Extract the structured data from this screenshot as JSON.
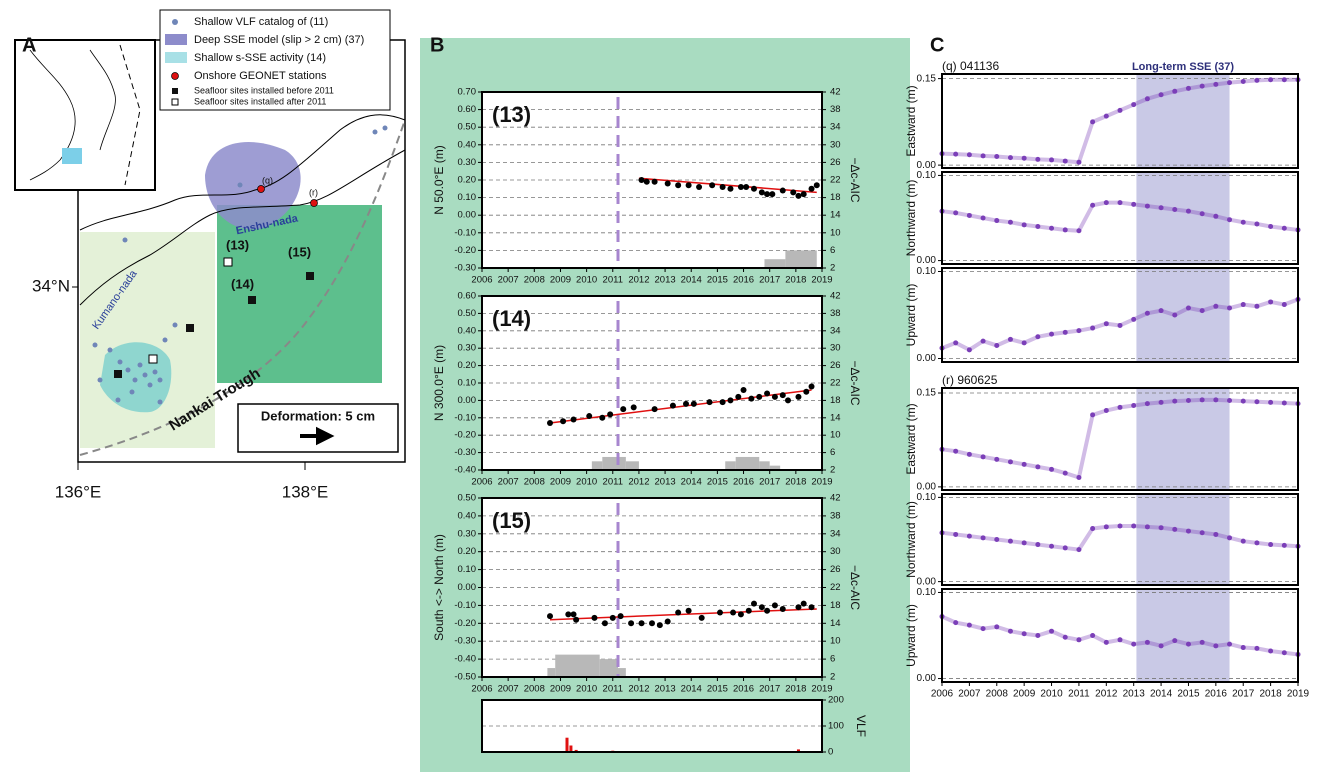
{
  "panel_labels": [
    "A",
    "B",
    "C"
  ],
  "map": {
    "legend": [
      "Shallow VLF catalog of (11)",
      "Deep SSE model (slip > 2 cm) (37)",
      "Shallow s-SSE activity (14)",
      "Onshore GEONET stations",
      "Seafloor sites installed before 2011",
      "Seafloor sites installed after 2011"
    ],
    "places": [
      "Kumano-nada",
      "Enshu-nada",
      "Nankai Trough"
    ],
    "sites": [
      "(13)",
      "(14)",
      "(15)"
    ],
    "stations": [
      "(q)",
      "(r)"
    ],
    "scale_label": "Deformation: 5 cm",
    "lat_label": "34°N",
    "lon_labels": [
      "136°E",
      "138°E"
    ]
  },
  "chart_data": [
    {
      "type": "scatter",
      "label": "(13)",
      "ylabel": "N 50.0°E (m)",
      "y2label": "−Δc-AIC",
      "color": "#000000",
      "xlim": [
        2006,
        2019
      ],
      "xticks": [
        2006,
        2007,
        2008,
        2009,
        2010,
        2011,
        2012,
        2013,
        2014,
        2015,
        2016,
        2017,
        2018,
        2019
      ],
      "ylim": [
        -0.3,
        0.7
      ],
      "yticks": [
        {
          "value": -0.3,
          "label": "-0.30"
        },
        {
          "value": -0.2,
          "label": "-0.20"
        },
        {
          "value": -0.1,
          "label": "-0.10"
        },
        {
          "value": 0,
          "label": "0.00"
        },
        {
          "value": 0.1,
          "label": "0.10"
        },
        {
          "value": 0.2,
          "label": "0.20"
        },
        {
          "value": 0.3,
          "label": "0.30"
        },
        {
          "value": 0.4,
          "label": "0.40"
        },
        {
          "value": 0.5,
          "label": "0.50"
        },
        {
          "value": 0.6,
          "label": "0.60"
        },
        {
          "value": 0.7,
          "label": "0.70"
        }
      ],
      "y2lim": [
        2,
        42
      ],
      "y2ticks": [
        2,
        6,
        10,
        14,
        18,
        22,
        26,
        30,
        34,
        38,
        42
      ],
      "x": [
        2012.1,
        2012.3,
        2012.6,
        2013.1,
        2013.5,
        2013.9,
        2014.3,
        2014.8,
        2015.2,
        2015.5,
        2015.9,
        2016.1,
        2016.4,
        2016.7,
        2016.9,
        2017.1,
        2017.5,
        2017.9,
        2018.1,
        2018.3,
        2018.6,
        2018.8
      ],
      "values": [
        0.2,
        0.19,
        0.19,
        0.18,
        0.17,
        0.17,
        0.16,
        0.17,
        0.16,
        0.15,
        0.16,
        0.16,
        0.15,
        0.13,
        0.12,
        0.12,
        0.14,
        0.13,
        0.11,
        0.12,
        0.15,
        0.17
      ],
      "trend": {
        "x": [
          2012,
          2018.8
        ],
        "values": [
          0.21,
          0.13
        ]
      },
      "event_x": 2011.2,
      "aic": {
        "bins": [
          2016.8,
          2017.6,
          2018.8
        ],
        "values": [
          4,
          6
        ]
      }
    },
    {
      "type": "scatter",
      "label": "(14)",
      "ylabel": "N 300.0°E (m)",
      "y2label": "−Δc-AIC",
      "color": "#000000",
      "xlim": [
        2006,
        2019
      ],
      "xticks": [
        2006,
        2007,
        2008,
        2009,
        2010,
        2011,
        2012,
        2013,
        2014,
        2015,
        2016,
        2017,
        2018,
        2019
      ],
      "ylim": [
        -0.4,
        0.6
      ],
      "yticks": [
        {
          "value": -0.4,
          "label": "-0.40"
        },
        {
          "value": -0.3,
          "label": "-0.30"
        },
        {
          "value": -0.2,
          "label": "-0.20"
        },
        {
          "value": -0.1,
          "label": "-0.10"
        },
        {
          "value": 0,
          "label": "0.00"
        },
        {
          "value": 0.1,
          "label": "0.10"
        },
        {
          "value": 0.2,
          "label": "0.20"
        },
        {
          "value": 0.3,
          "label": "0.30"
        },
        {
          "value": 0.4,
          "label": "0.40"
        },
        {
          "value": 0.5,
          "label": "0.50"
        },
        {
          "value": 0.6,
          "label": "0.60"
        }
      ],
      "y2lim": [
        2,
        42
      ],
      "y2ticks": [
        2,
        6,
        10,
        14,
        18,
        22,
        26,
        30,
        34,
        38,
        42
      ],
      "x": [
        2008.6,
        2009.1,
        2009.5,
        2010.1,
        2010.6,
        2010.9,
        2011.4,
        2011.8,
        2012.6,
        2013.3,
        2013.8,
        2014.1,
        2014.7,
        2015.2,
        2015.5,
        2015.8,
        2016.0,
        2016.3,
        2016.6,
        2016.9,
        2017.2,
        2017.5,
        2017.7,
        2018.1,
        2018.4,
        2018.6
      ],
      "values": [
        -0.13,
        -0.12,
        -0.11,
        -0.09,
        -0.1,
        -0.08,
        -0.05,
        -0.04,
        -0.05,
        -0.03,
        -0.02,
        -0.02,
        -0.01,
        -0.01,
        0,
        0.02,
        0.06,
        0.01,
        0.02,
        0.04,
        0.02,
        0.03,
        0,
        0.02,
        0.05,
        0.08
      ],
      "trend": {
        "x": [
          2008.6,
          2018.6
        ],
        "values": [
          -0.13,
          0.06
        ]
      },
      "event_x": 2011.2,
      "aic": {
        "bins": [
          2010.2,
          2010.6,
          2011.5,
          2012.0,
          2015.3,
          2015.7,
          2016.6,
          2017.0,
          2017.4
        ],
        "values": [
          4,
          5,
          4,
          2,
          4,
          5,
          4,
          3
        ]
      }
    },
    {
      "type": "scatter",
      "label": "(15)",
      "ylabel": "South <-> North (m)",
      "y2label": "−Δc-AIC",
      "color": "#000000",
      "xlim": [
        2006,
        2019
      ],
      "xticks": [
        2006,
        2007,
        2008,
        2009,
        2010,
        2011,
        2012,
        2013,
        2014,
        2015,
        2016,
        2017,
        2018,
        2019
      ],
      "ylim": [
        -0.5,
        0.5
      ],
      "yticks": [
        {
          "value": -0.5,
          "label": "-0.50"
        },
        {
          "value": -0.4,
          "label": "-0.40"
        },
        {
          "value": -0.3,
          "label": "-0.30"
        },
        {
          "value": -0.2,
          "label": "-0.20"
        },
        {
          "value": -0.1,
          "label": "-0.10"
        },
        {
          "value": 0,
          "label": "0.00"
        },
        {
          "value": 0.1,
          "label": "0.10"
        },
        {
          "value": 0.2,
          "label": "0.20"
        },
        {
          "value": 0.3,
          "label": "0.30"
        },
        {
          "value": 0.4,
          "label": "0.40"
        },
        {
          "value": 0.5,
          "label": "0.50"
        }
      ],
      "y2lim": [
        2,
        42
      ],
      "y2ticks": [
        2,
        6,
        10,
        14,
        18,
        22,
        26,
        30,
        34,
        38,
        42
      ],
      "x": [
        2008.6,
        2009.3,
        2009.5,
        2009.6,
        2010.3,
        2010.7,
        2011.0,
        2011.3,
        2011.7,
        2012.1,
        2012.5,
        2012.8,
        2013.1,
        2013.5,
        2013.9,
        2014.4,
        2015.1,
        2015.6,
        2015.9,
        2016.2,
        2016.4,
        2016.7,
        2016.9,
        2017.2,
        2017.5,
        2018.1,
        2018.3,
        2018.6
      ],
      "values": [
        -0.16,
        -0.15,
        -0.15,
        -0.18,
        -0.17,
        -0.2,
        -0.17,
        -0.16,
        -0.2,
        -0.2,
        -0.2,
        -0.21,
        -0.19,
        -0.14,
        -0.13,
        -0.17,
        -0.14,
        -0.14,
        -0.15,
        -0.13,
        -0.09,
        -0.11,
        -0.13,
        -0.1,
        -0.12,
        -0.11,
        -0.09,
        -0.11
      ],
      "trend": {
        "x": [
          2008.6,
          2018.8
        ],
        "values": [
          -0.18,
          -0.12
        ]
      },
      "event_x": 2011.2,
      "aic": {
        "bins": [
          2008.5,
          2008.8,
          2010.5,
          2011.2,
          2011.5
        ],
        "values": [
          4,
          7,
          6,
          4
        ]
      }
    },
    {
      "type": "bar",
      "ylabel": "VLF",
      "yaxis_side": "right",
      "color": "#e01010",
      "xlim": [
        2006,
        2019
      ],
      "ylim": [
        0,
        200
      ],
      "yticks": [
        0,
        100,
        200
      ],
      "x": [
        2009.25,
        2009.4,
        2009.6,
        2011.0,
        2015.5,
        2018.1
      ],
      "values": [
        55,
        25,
        8,
        5,
        3,
        10
      ]
    },
    {
      "type": "scatter",
      "title": "(q) 041136",
      "ylabel": "Eastward (m)",
      "color": "#7b3fb8",
      "shade": [
        2013.1,
        2016.5
      ],
      "shade_label": "Long-term SSE (37)",
      "xlim": [
        2006,
        2019
      ],
      "ylim": [
        -0.005,
        0.158
      ],
      "yticks": [
        {
          "value": 0,
          "label": "0.00"
        },
        0.15
      ],
      "x": [
        2006,
        2006.5,
        2007,
        2007.5,
        2008,
        2008.5,
        2009,
        2009.5,
        2010,
        2010.5,
        2011,
        2011.5,
        2012,
        2012.5,
        2013,
        2013.5,
        2014,
        2014.5,
        2015,
        2015.5,
        2016,
        2016.5,
        2017,
        2017.5,
        2018,
        2018.5,
        2019
      ],
      "values": [
        0.02,
        0.019,
        0.018,
        0.016,
        0.015,
        0.013,
        0.012,
        0.01,
        0.009,
        0.007,
        0.005,
        0.075,
        0.085,
        0.095,
        0.105,
        0.115,
        0.122,
        0.128,
        0.133,
        0.137,
        0.14,
        0.143,
        0.145,
        0.147,
        0.148,
        0.148,
        0.148
      ]
    },
    {
      "type": "scatter",
      "ylabel": "Northward (m)",
      "color": "#7b3fb8",
      "shade": [
        2013.1,
        2016.5
      ],
      "xlim": [
        2006,
        2019
      ],
      "ylim": [
        -0.004,
        0.104
      ],
      "yticks": [
        {
          "value": 0,
          "label": "0.00"
        },
        {
          "value": 0.1,
          "label": "0.10"
        }
      ],
      "x": [
        2006,
        2006.5,
        2007,
        2007.5,
        2008,
        2008.5,
        2009,
        2009.5,
        2010,
        2010.5,
        2011,
        2011.5,
        2012,
        2012.5,
        2013,
        2013.5,
        2014,
        2014.5,
        2015,
        2015.5,
        2016,
        2016.5,
        2017,
        2017.5,
        2018,
        2018.5,
        2019
      ],
      "values": [
        0.058,
        0.056,
        0.053,
        0.05,
        0.047,
        0.045,
        0.042,
        0.04,
        0.038,
        0.036,
        0.035,
        0.065,
        0.068,
        0.068,
        0.066,
        0.064,
        0.062,
        0.06,
        0.058,
        0.055,
        0.052,
        0.048,
        0.045,
        0.043,
        0.04,
        0.038,
        0.036
      ]
    },
    {
      "type": "scatter",
      "ylabel": "Upward (m)",
      "color": "#7b3fb8",
      "shade": [
        2013.1,
        2016.5
      ],
      "xlim": [
        2006,
        2019
      ],
      "ylim": [
        -0.004,
        0.104
      ],
      "yticks": [
        {
          "value": 0,
          "label": "0.00"
        },
        {
          "value": 0.1,
          "label": "0.10"
        }
      ],
      "x": [
        2006,
        2006.5,
        2007,
        2007.5,
        2008,
        2008.5,
        2009,
        2009.5,
        2010,
        2010.5,
        2011,
        2011.5,
        2012,
        2012.5,
        2013,
        2013.5,
        2014,
        2014.5,
        2015,
        2015.5,
        2016,
        2016.5,
        2017,
        2017.5,
        2018,
        2018.5,
        2019
      ],
      "values": [
        0.012,
        0.018,
        0.01,
        0.02,
        0.015,
        0.022,
        0.018,
        0.025,
        0.028,
        0.03,
        0.032,
        0.035,
        0.04,
        0.038,
        0.045,
        0.052,
        0.055,
        0.05,
        0.058,
        0.055,
        0.06,
        0.058,
        0.062,
        0.06,
        0.065,
        0.062,
        0.068
      ]
    },
    {
      "type": "scatter",
      "title": "(r) 960625",
      "ylabel": "Eastward (m)",
      "color": "#7b3fb8",
      "shade": [
        2013.1,
        2016.5
      ],
      "xlim": [
        2006,
        2019
      ],
      "ylim": [
        -0.005,
        0.158
      ],
      "yticks": [
        {
          "value": 0,
          "label": "0.00"
        },
        0.15
      ],
      "x": [
        2006,
        2006.5,
        2007,
        2007.5,
        2008,
        2008.5,
        2009,
        2009.5,
        2010,
        2010.5,
        2011,
        2011.5,
        2012,
        2012.5,
        2013,
        2013.5,
        2014,
        2014.5,
        2015,
        2015.5,
        2016,
        2016.5,
        2017,
        2017.5,
        2018,
        2018.5,
        2019
      ],
      "values": [
        0.06,
        0.057,
        0.052,
        0.048,
        0.044,
        0.04,
        0.036,
        0.032,
        0.028,
        0.022,
        0.015,
        0.115,
        0.122,
        0.127,
        0.13,
        0.133,
        0.135,
        0.137,
        0.138,
        0.139,
        0.139,
        0.138,
        0.137,
        0.136,
        0.135,
        0.134,
        0.133
      ]
    },
    {
      "type": "scatter",
      "ylabel": "Northward (m)",
      "color": "#7b3fb8",
      "shade": [
        2013.1,
        2016.5
      ],
      "xlim": [
        2006,
        2019
      ],
      "ylim": [
        -0.004,
        0.104
      ],
      "yticks": [
        {
          "value": 0,
          "label": "0.00"
        },
        {
          "value": 0.1,
          "label": "0.10"
        }
      ],
      "x": [
        2006,
        2006.5,
        2007,
        2007.5,
        2008,
        2008.5,
        2009,
        2009.5,
        2010,
        2010.5,
        2011,
        2011.5,
        2012,
        2012.5,
        2013,
        2013.5,
        2014,
        2014.5,
        2015,
        2015.5,
        2016,
        2016.5,
        2017,
        2017.5,
        2018,
        2018.5,
        2019
      ],
      "values": [
        0.058,
        0.056,
        0.054,
        0.052,
        0.05,
        0.048,
        0.046,
        0.044,
        0.042,
        0.04,
        0.038,
        0.063,
        0.065,
        0.066,
        0.066,
        0.065,
        0.064,
        0.062,
        0.06,
        0.058,
        0.056,
        0.052,
        0.048,
        0.046,
        0.044,
        0.043,
        0.042
      ]
    },
    {
      "type": "scatter",
      "ylabel": "Upward (m)",
      "color": "#7b3fb8",
      "shade": [
        2013.1,
        2016.5
      ],
      "xlim": [
        2006,
        2019
      ],
      "xticks": [
        2006,
        2007,
        2008,
        2009,
        2010,
        2011,
        2012,
        2013,
        2014,
        2015,
        2016,
        2017,
        2018,
        2019
      ],
      "ylim": [
        -0.004,
        0.104
      ],
      "yticks": [
        {
          "value": 0,
          "label": "0.00"
        },
        {
          "value": 0.1,
          "label": "0.10"
        }
      ],
      "x": [
        2006,
        2006.5,
        2007,
        2007.5,
        2008,
        2008.5,
        2009,
        2009.5,
        2010,
        2010.5,
        2011,
        2011.5,
        2012,
        2012.5,
        2013,
        2013.5,
        2014,
        2014.5,
        2015,
        2015.5,
        2016,
        2016.5,
        2017,
        2017.5,
        2018,
        2018.5,
        2019
      ],
      "values": [
        0.072,
        0.065,
        0.062,
        0.058,
        0.06,
        0.055,
        0.052,
        0.05,
        0.055,
        0.048,
        0.045,
        0.05,
        0.042,
        0.045,
        0.04,
        0.042,
        0.038,
        0.044,
        0.04,
        0.042,
        0.038,
        0.04,
        0.036,
        0.035,
        0.032,
        0.03,
        0.028
      ]
    }
  ]
}
